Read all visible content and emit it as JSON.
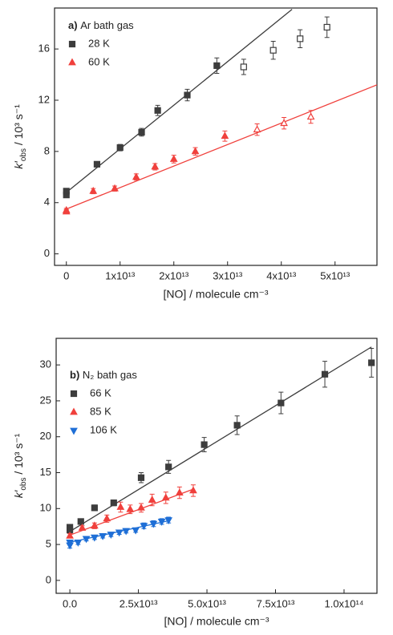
{
  "chart_data": [
    {
      "type": "scatter",
      "panel": "a)",
      "annotation": "Ar bath gas",
      "xlabel": "[NO] / molecule cm⁻³",
      "ylabel": [
        "k′",
        "obs",
        " / 10³ s⁻¹"
      ],
      "xlim": [
        -2200000000000.0,
        57800000000000.0
      ],
      "ylim": [
        -0.9,
        19.2
      ],
      "xticks": [
        0,
        {
          "value": 10000000000000.0,
          "label": "1x10¹³"
        },
        {
          "value": 20000000000000.0,
          "label": "2x10¹³"
        },
        {
          "value": 30000000000000.0,
          "label": "3x10¹³"
        },
        {
          "value": 40000000000000.0,
          "label": "4x10¹³"
        },
        {
          "value": 50000000000000.0,
          "label": "5x10¹³"
        }
      ],
      "yticks": [
        0,
        4,
        8,
        12,
        16
      ],
      "series": [
        {
          "name": "28 K",
          "color": "#3d3d3d",
          "marker": "square",
          "x": [
            0,
            0,
            5700000000000.0,
            10000000000000.0,
            14000000000000.0,
            17000000000000.0,
            22500000000000.0,
            28000000000000.0,
            33000000000000.0,
            38500000000000.0,
            43500000000000.0,
            48500000000000.0
          ],
          "values": [
            4.6,
            4.9,
            7.0,
            8.3,
            9.5,
            11.2,
            12.4,
            14.7,
            14.6,
            15.9,
            16.8,
            17.7
          ],
          "errors": [
            0.2,
            0.2,
            0.2,
            0.25,
            0.3,
            0.4,
            0.45,
            0.6,
            0.6,
            0.7,
            0.7,
            0.8
          ],
          "filled": [
            true,
            true,
            true,
            true,
            true,
            true,
            true,
            true,
            false,
            false,
            false,
            false
          ],
          "fit": {
            "x": [
              0,
              42000000000000.0
            ],
            "y": [
              4.8,
              19.1
            ]
          }
        },
        {
          "name": "60 K",
          "color": "#f0403c",
          "marker": "triangle-up",
          "x": [
            0,
            0,
            5000000000000.0,
            9000000000000.0,
            13000000000000.0,
            16500000000000.0,
            20000000000000.0,
            24000000000000.0,
            29500000000000.0,
            35500000000000.0,
            40500000000000.0,
            45500000000000.0
          ],
          "values": [
            3.4,
            3.3,
            4.9,
            5.1,
            6.0,
            6.8,
            7.4,
            8.0,
            9.2,
            9.7,
            10.2,
            10.7
          ],
          "errors": [
            0.15,
            0.15,
            0.2,
            0.2,
            0.25,
            0.25,
            0.3,
            0.3,
            0.4,
            0.45,
            0.45,
            0.5
          ],
          "filled": [
            true,
            true,
            true,
            true,
            true,
            true,
            true,
            true,
            true,
            false,
            false,
            false
          ],
          "fit": {
            "x": [
              0,
              57800000000000.0
            ],
            "y": [
              3.5,
              13.2
            ]
          }
        }
      ]
    },
    {
      "type": "scatter",
      "panel": "b)",
      "annotation": "N₂ bath gas",
      "xlabel": "[NO] / molecule cm⁻³",
      "ylabel": [
        "k′",
        "obs",
        " / 10³ s⁻¹"
      ],
      "xlim": [
        -5000000000000.0,
        112000000000000.0
      ],
      "ylim": [
        -1.8,
        33.7
      ],
      "xticks": [
        {
          "value": 0,
          "label": "0.0"
        },
        {
          "value": 25000000000000.0,
          "label": "2.5x10¹³"
        },
        {
          "value": 50000000000000.0,
          "label": "5.0x10¹³"
        },
        {
          "value": 75000000000000.0,
          "label": "7.5x10¹³"
        },
        {
          "value": 100000000000000.0,
          "label": "1.0x10¹⁴"
        }
      ],
      "yticks": [
        0,
        5,
        10,
        15,
        20,
        25,
        30
      ],
      "series": [
        {
          "name": "66 K",
          "color": "#3d3d3d",
          "marker": "square",
          "x": [
            0,
            0,
            4000000000000.0,
            9000000000000.0,
            16000000000000.0,
            26000000000000.0,
            36000000000000.0,
            49000000000000.0,
            61000000000000.0,
            77000000000000.0,
            93000000000000.0,
            110000000000000.0
          ],
          "values": [
            7.4,
            7.0,
            8.2,
            10.1,
            10.8,
            14.3,
            15.8,
            18.9,
            21.6,
            24.7,
            28.7,
            30.3
          ],
          "errors": [
            0.3,
            0.3,
            0.3,
            0.4,
            0.4,
            0.7,
            0.9,
            1.0,
            1.3,
            1.5,
            1.8,
            2.0
          ],
          "fit": {
            "x": [
              0,
              110000000000000.0
            ],
            "y": [
              6.8,
              32.5
            ]
          }
        },
        {
          "name": "85 K",
          "color": "#f0403c",
          "marker": "triangle-up",
          "x": [
            0,
            4500000000000.0,
            9000000000000.0,
            13500000000000.0,
            18500000000000.0,
            22000000000000.0,
            26000000000000.0,
            30000000000000.0,
            35000000000000.0,
            40000000000000.0,
            45000000000000.0
          ],
          "values": [
            6.2,
            7.3,
            7.6,
            8.6,
            10.2,
            9.9,
            10.1,
            11.2,
            11.5,
            12.2,
            12.5
          ],
          "errors": [
            0.3,
            0.3,
            0.4,
            0.5,
            0.7,
            0.6,
            0.6,
            0.8,
            0.8,
            0.8,
            0.8
          ],
          "fit": {
            "x": [
              0,
              45000000000000.0
            ],
            "y": [
              6.3,
              12.7
            ]
          }
        },
        {
          "name": "106 K",
          "color": "#1f6fd6",
          "marker": "triangle-down",
          "x": [
            0,
            0,
            3000000000000.0,
            6000000000000.0,
            9000000000000.0,
            12000000000000.0,
            15000000000000.0,
            18000000000000.0,
            20500000000000.0,
            24000000000000.0,
            27000000000000.0,
            30500000000000.0,
            33500000000000.0,
            36000000000000.0
          ],
          "values": [
            4.9,
            5.3,
            5.3,
            5.8,
            6.0,
            6.2,
            6.4,
            6.7,
            6.9,
            7.0,
            7.6,
            7.9,
            8.2,
            8.4
          ],
          "errors": [
            0.4,
            0.3,
            0.3,
            0.3,
            0.3,
            0.3,
            0.3,
            0.3,
            0.3,
            0.3,
            0.4,
            0.4,
            0.4,
            0.4
          ],
          "fit": {
            "x": [
              0,
              36000000000000.0
            ],
            "y": [
              5.3,
              8.3
            ]
          }
        }
      ]
    }
  ]
}
